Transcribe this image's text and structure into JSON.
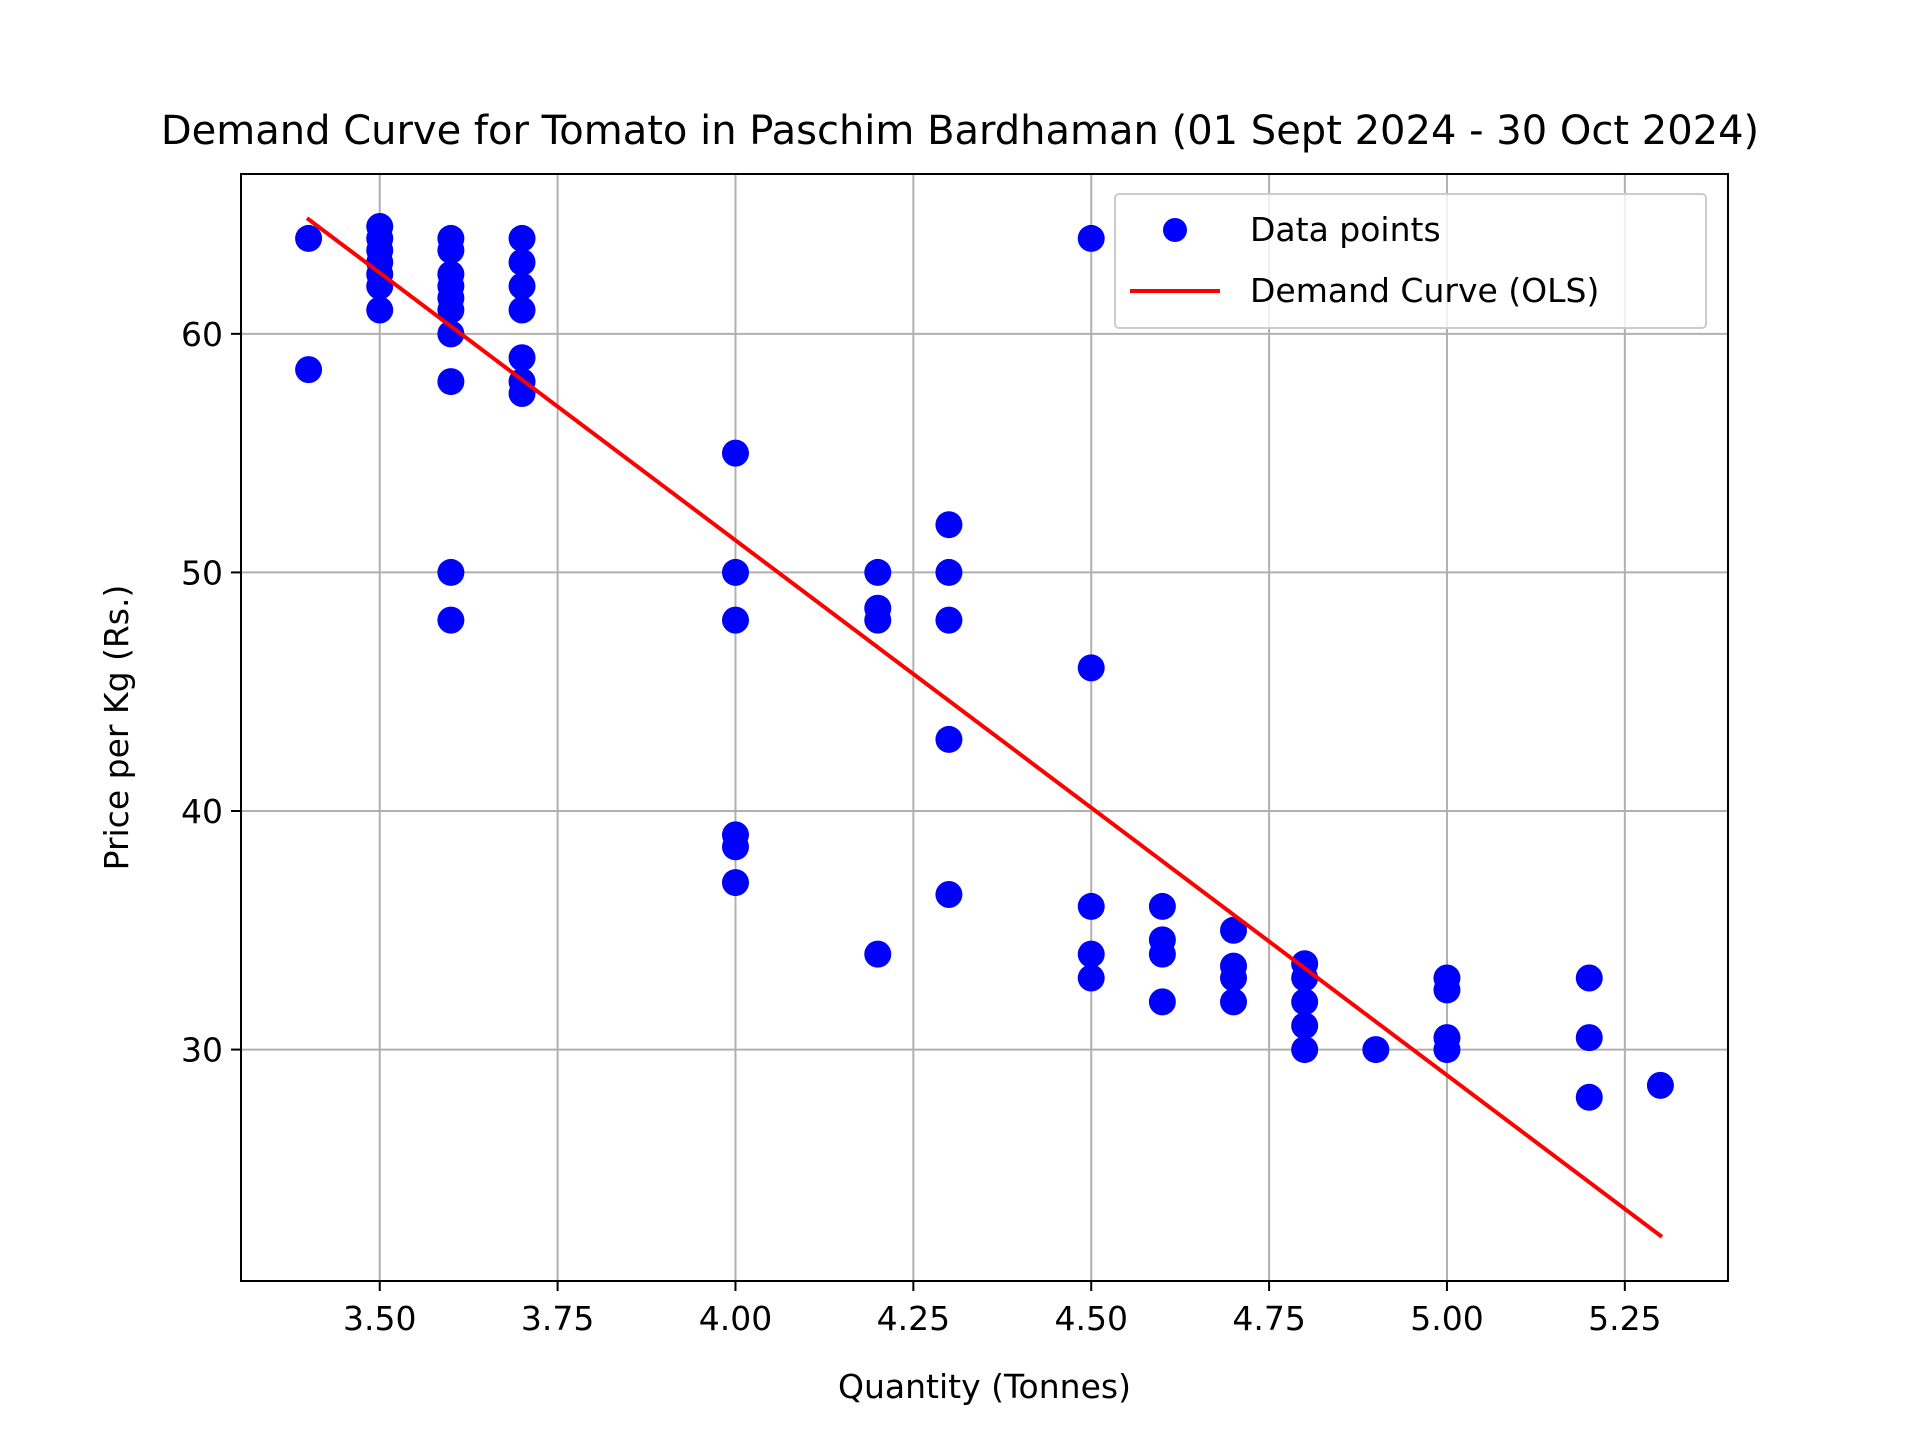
{
  "chart_data": {
    "type": "scatter",
    "title": "Demand Curve for Tomato in Paschim Bardhaman (01 Sept 2024 - 30 Oct 2024)",
    "xlabel": "Quantity (Tonnes)",
    "ylabel": "Price per Kg (Rs.)",
    "xlim": [
      3.305,
      5.395
    ],
    "ylim": [
      20.3,
      66.7
    ],
    "grid": true,
    "legend_position": "top-right",
    "x_ticks": [
      {
        "value": 3.5,
        "label": "3.50"
      },
      {
        "value": 3.75,
        "label": "3.75"
      },
      {
        "value": 4.0,
        "label": "4.00"
      },
      {
        "value": 4.25,
        "label": "4.25"
      },
      {
        "value": 4.5,
        "label": "4.50"
      },
      {
        "value": 4.75,
        "label": "4.75"
      },
      {
        "value": 5.0,
        "label": "5.00"
      },
      {
        "value": 5.25,
        "label": "5.25"
      }
    ],
    "y_ticks": [
      {
        "value": 30,
        "label": "30"
      },
      {
        "value": 40,
        "label": "40"
      },
      {
        "value": 50,
        "label": "50"
      },
      {
        "value": 60,
        "label": "60"
      }
    ],
    "series": [
      {
        "name": "Data points",
        "kind": "scatter",
        "color": "#0000ff",
        "points": [
          [
            3.4,
            64.0
          ],
          [
            3.4,
            58.5
          ],
          [
            3.5,
            64.5
          ],
          [
            3.5,
            64.0
          ],
          [
            3.5,
            63.5
          ],
          [
            3.5,
            63.0
          ],
          [
            3.5,
            62.5
          ],
          [
            3.5,
            62.0
          ],
          [
            3.5,
            61.0
          ],
          [
            3.6,
            64.0
          ],
          [
            3.6,
            63.5
          ],
          [
            3.6,
            62.5
          ],
          [
            3.6,
            62.0
          ],
          [
            3.6,
            61.5
          ],
          [
            3.6,
            61.0
          ],
          [
            3.6,
            60.0
          ],
          [
            3.6,
            58.0
          ],
          [
            3.6,
            50.0
          ],
          [
            3.6,
            48.0
          ],
          [
            3.7,
            64.0
          ],
          [
            3.7,
            63.0
          ],
          [
            3.7,
            62.0
          ],
          [
            3.7,
            61.0
          ],
          [
            3.7,
            59.0
          ],
          [
            3.7,
            58.0
          ],
          [
            3.7,
            57.5
          ],
          [
            4.0,
            55.0
          ],
          [
            4.0,
            50.0
          ],
          [
            4.0,
            48.0
          ],
          [
            4.0,
            39.0
          ],
          [
            4.0,
            38.5
          ],
          [
            4.0,
            37.0
          ],
          [
            4.2,
            50.0
          ],
          [
            4.2,
            48.5
          ],
          [
            4.2,
            48.0
          ],
          [
            4.2,
            34.0
          ],
          [
            4.3,
            52.0
          ],
          [
            4.3,
            50.0
          ],
          [
            4.3,
            48.0
          ],
          [
            4.3,
            43.0
          ],
          [
            4.3,
            36.5
          ],
          [
            4.5,
            64.0
          ],
          [
            4.5,
            46.0
          ],
          [
            4.5,
            36.0
          ],
          [
            4.5,
            34.0
          ],
          [
            4.5,
            33.0
          ],
          [
            4.6,
            36.0
          ],
          [
            4.6,
            34.6
          ],
          [
            4.6,
            34.0
          ],
          [
            4.6,
            32.0
          ],
          [
            4.7,
            35.0
          ],
          [
            4.7,
            33.5
          ],
          [
            4.7,
            33.0
          ],
          [
            4.7,
            32.0
          ],
          [
            4.8,
            33.6
          ],
          [
            4.8,
            33.0
          ],
          [
            4.8,
            32.0
          ],
          [
            4.8,
            31.0
          ],
          [
            4.8,
            30.0
          ],
          [
            4.9,
            30.0
          ],
          [
            5.0,
            33.0
          ],
          [
            5.0,
            32.5
          ],
          [
            5.0,
            30.5
          ],
          [
            5.0,
            30.0
          ],
          [
            5.2,
            33.0
          ],
          [
            5.2,
            30.5
          ],
          [
            5.2,
            28.0
          ],
          [
            5.3,
            28.5
          ]
        ]
      },
      {
        "name": "Demand Curve (OLS)",
        "kind": "line",
        "color": "#ff0000",
        "x": [
          3.4,
          5.3
        ],
        "y": [
          64.8,
          22.2
        ]
      }
    ]
  }
}
